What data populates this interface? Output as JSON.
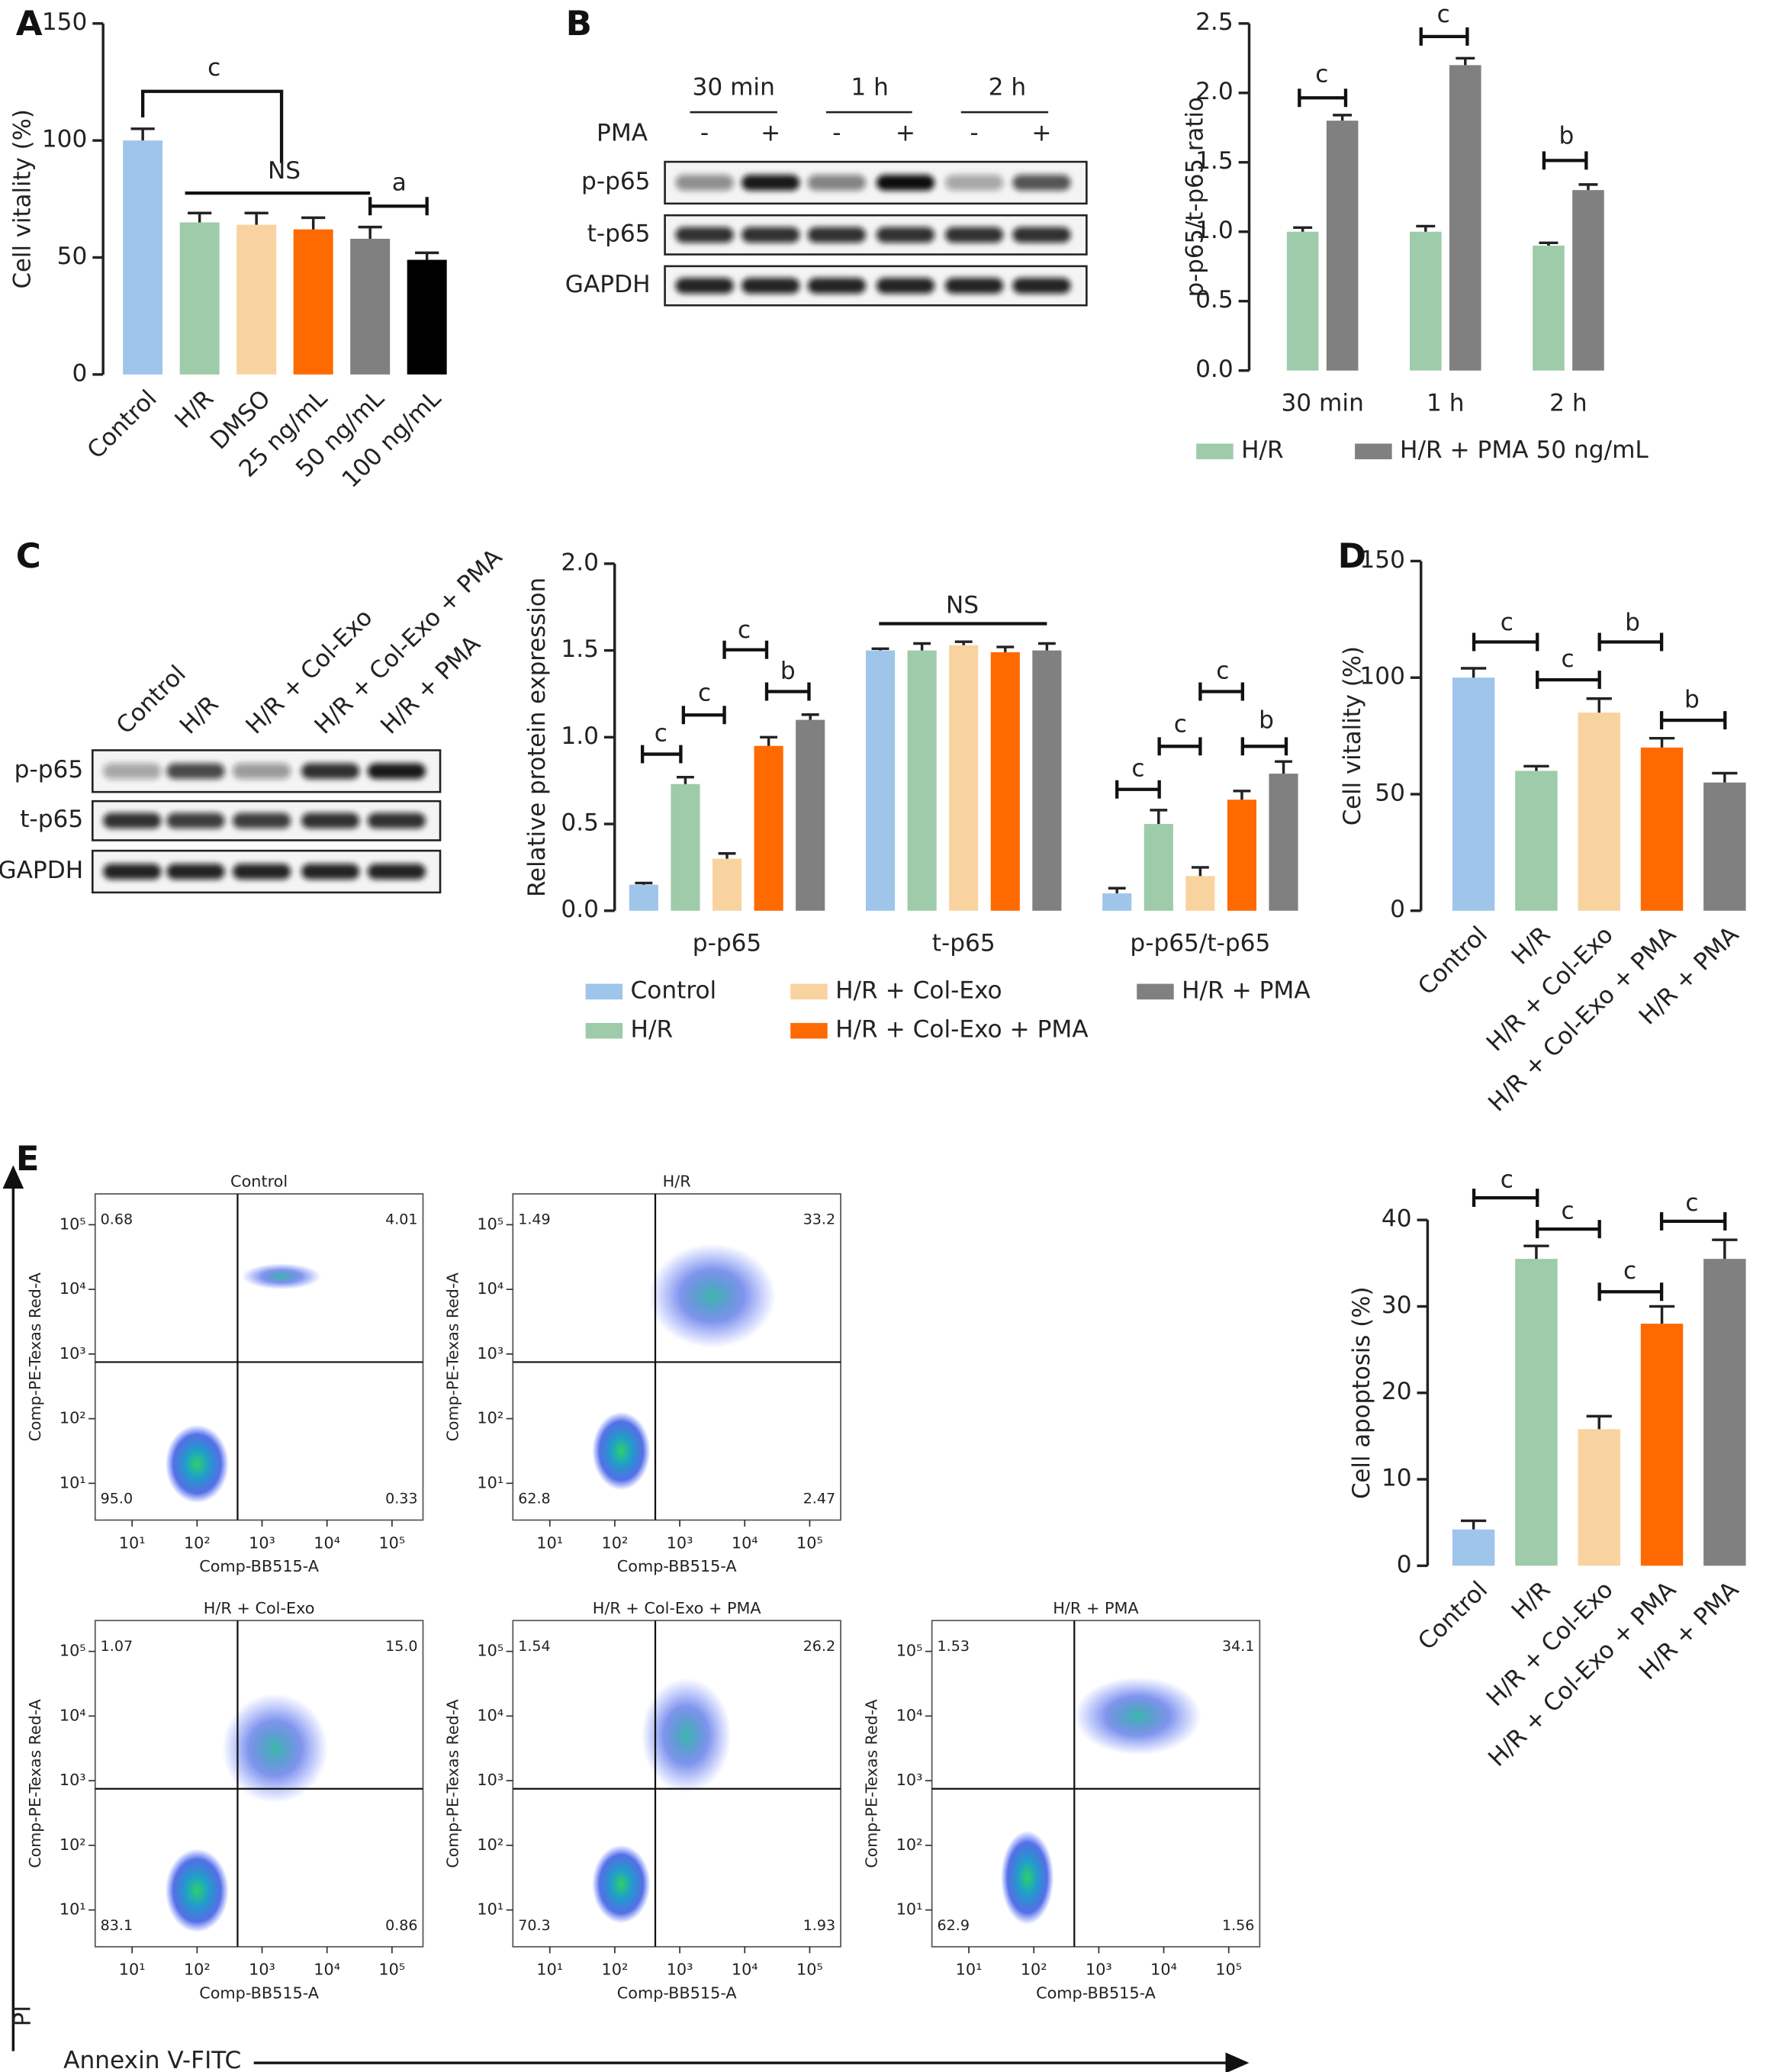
{
  "chart_data": [
    {
      "type": "bar",
      "panel": "A",
      "ylabel": "Cell vitality (%)",
      "categories": [
        "Control",
        "H/R",
        "DMSO",
        "25 ng/mL",
        "50 ng/mL",
        "100 ng/mL"
      ],
      "values": [
        100,
        65,
        64,
        62,
        58,
        49
      ],
      "errors": [
        5,
        4,
        5,
        5,
        5,
        3
      ],
      "colors": [
        "#9fc5eb",
        "#9ecba9",
        "#f9d39f",
        "#ff6a00",
        "#808080",
        "#000000"
      ],
      "ylim": [
        0,
        150
      ],
      "yticks": [
        0,
        50,
        100,
        150
      ],
      "annotations": [
        "c",
        "NS",
        "a"
      ]
    },
    {
      "type": "bar",
      "ylabel": "p-p65/t-p65 ratio",
      "categories": [
        "30 min",
        "1 h",
        "2 h"
      ],
      "series": [
        {
          "name": "H/R",
          "color": "#9ecba9",
          "values": [
            1.0,
            1.0,
            0.9
          ],
          "errors": [
            0.03,
            0.04,
            0.02
          ]
        },
        {
          "name": "H/R + PMA 50 ng/mL",
          "color": "#808080",
          "values": [
            1.8,
            2.2,
            1.3
          ],
          "errors": [
            0.04,
            0.05,
            0.04
          ]
        }
      ],
      "ylim": [
        0,
        2.5
      ],
      "yticks": [
        {
          "value": 0,
          "label": "0.0"
        },
        0.5,
        {
          "value": 1,
          "label": "1.0"
        },
        1.5,
        {
          "value": 2,
          "label": "2.0"
        },
        2.5
      ],
      "annotations": [
        "c",
        "c",
        "b"
      ]
    },
    {
      "type": "bar",
      "ylabel": "Relative protein expression",
      "categories": [
        "p-p65",
        "t-p65",
        "p-p65/t-p65"
      ],
      "series": [
        {
          "name": "Control",
          "color": "#9fc5eb",
          "values": [
            0.15,
            1.5,
            0.1
          ],
          "errors": [
            0.01,
            0.01,
            0.03
          ]
        },
        {
          "name": "H/R",
          "color": "#9ecba9",
          "values": [
            0.73,
            1.5,
            0.5
          ],
          "errors": [
            0.04,
            0.04,
            0.08
          ]
        },
        {
          "name": "H/R + Col-Exo",
          "color": "#f9d39f",
          "values": [
            0.3,
            1.53,
            0.2
          ],
          "errors": [
            0.03,
            0.02,
            0.05
          ]
        },
        {
          "name": "H/R + Col-Exo + PMA",
          "color": "#ff6a00",
          "values": [
            0.95,
            1.49,
            0.64
          ],
          "errors": [
            0.05,
            0.03,
            0.05
          ]
        },
        {
          "name": "H/R + PMA",
          "color": "#808080",
          "values": [
            1.1,
            1.5,
            0.79
          ],
          "errors": [
            0.03,
            0.04,
            0.07
          ]
        }
      ],
      "ylim": [
        0,
        2
      ],
      "yticks": [
        {
          "value": 0,
          "label": "0.0"
        },
        0.5,
        {
          "value": 1,
          "label": "1.0"
        },
        1.5,
        {
          "value": 2,
          "label": "2.0"
        }
      ],
      "annotations": [
        "c",
        "c",
        "c",
        "b",
        "NS",
        "c",
        "c",
        "c",
        "b"
      ]
    },
    {
      "type": "bar",
      "panel": "D",
      "ylabel": "Cell vitality (%)",
      "categories": [
        "Control",
        "H/R",
        "H/R + Col-Exo",
        "H/R + Col-Exo + PMA",
        "H/R + PMA"
      ],
      "values": [
        100,
        60,
        85,
        70,
        55
      ],
      "errors": [
        4,
        2,
        6,
        4,
        4
      ],
      "colors": [
        "#9fc5eb",
        "#9ecba9",
        "#f9d39f",
        "#ff6a00",
        "#808080"
      ],
      "ylim": [
        0,
        150
      ],
      "yticks": [
        0,
        50,
        100,
        150
      ],
      "annotations": [
        "c",
        "c",
        "b",
        "b"
      ]
    },
    {
      "type": "bar",
      "ylabel": "Cell apoptosis (%)",
      "categories": [
        "Control",
        "H/R",
        "H/R + Col-Exo",
        "H/R + Col-Exo + PMA",
        "H/R + PMA"
      ],
      "values": [
        4.2,
        35.5,
        15.8,
        28,
        35.5
      ],
      "errors": [
        1,
        1.5,
        1.5,
        2,
        2.2
      ],
      "colors": [
        "#9fc5eb",
        "#9ecba9",
        "#f9d39f",
        "#ff6a00",
        "#808080"
      ],
      "ylim": [
        0,
        40
      ],
      "yticks": [
        0,
        10,
        20,
        30,
        40
      ],
      "annotations": [
        "c",
        "c",
        "c",
        "c"
      ]
    }
  ],
  "blots": [
    {
      "panel": "B",
      "time_labels": [
        "30 min",
        "1 h",
        "2 h"
      ],
      "treatment": "PMA",
      "lanes": [
        "-",
        "+",
        "-",
        "+",
        "-",
        "+"
      ],
      "rows": [
        "p-p65",
        "t-p65",
        "GAPDH"
      ]
    },
    {
      "panel": "C",
      "lanes": [
        "Control",
        "H/R",
        "H/R + Col-Exo",
        "H/R + Col-Exo + PMA",
        "H/R + PMA"
      ],
      "rows": [
        "p-p65",
        "t-p65",
        "GAPDH"
      ]
    }
  ],
  "flow": {
    "panel": "E",
    "y_title": "PI",
    "x_title": "Annexin V-FITC",
    "xlabel": "Comp-BB515-A",
    "ylabel": "Comp-PE-Texas Red-A",
    "xlim": [
      2.7,
      300000
    ],
    "ylim": [
      2.7,
      300000
    ],
    "ticks": [
      {
        "value": 10,
        "label": "10¹"
      },
      {
        "value": 100,
        "label": "10²"
      },
      {
        "value": 1000,
        "label": "10³"
      },
      {
        "value": 10000,
        "label": "10⁴"
      },
      {
        "value": 100000,
        "label": "10⁵"
      }
    ],
    "gate": [
      420,
      750
    ],
    "plots": [
      {
        "title": "Control",
        "quadrants": [
          "0.68",
          "4.01",
          "95.0",
          "0.33"
        ]
      },
      {
        "title": "H/R",
        "quadrants": [
          "1.49",
          "33.2",
          "62.8",
          "2.47"
        ]
      },
      {
        "title": "H/R + Col-Exo",
        "quadrants": [
          "1.07",
          "15.0",
          "83.1",
          "0.86"
        ]
      },
      {
        "title": "H/R + Col-Exo + PMA",
        "quadrants": [
          "1.54",
          "26.2",
          "70.3",
          "1.93"
        ]
      },
      {
        "title": "H/R + PMA",
        "quadrants": [
          "1.53",
          "34.1",
          "62.9",
          "1.56"
        ]
      }
    ]
  }
}
